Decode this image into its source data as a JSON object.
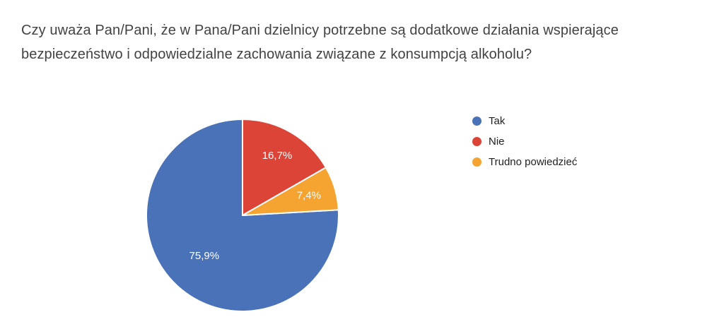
{
  "chart_data": {
    "type": "pie",
    "title": "Czy uważa Pan/Pani, że w Pana/Pani dzielnicy potrzebne są dodatkowe działania wspierające bezpieczeństwo i odpowiedzialne zachowania związane z konsumpcją alkoholu?",
    "slices": [
      {
        "label": "Tak",
        "value": 75.9,
        "display": "75,9%",
        "color": "#4a72b8"
      },
      {
        "label": "Nie",
        "value": 16.7,
        "display": "16,7%",
        "color": "#db4437"
      },
      {
        "label": "Trudno powiedzieć",
        "value": 7.4,
        "display": "7,4%",
        "color": "#f5a331"
      }
    ],
    "legend_position": "right",
    "rotation_deg": 86.76,
    "label_color": "#ffffff",
    "slice_border_color": "#ffffff",
    "title_color": "#424242",
    "legend_text_color": "#212121",
    "background_color": "#ffffff"
  }
}
